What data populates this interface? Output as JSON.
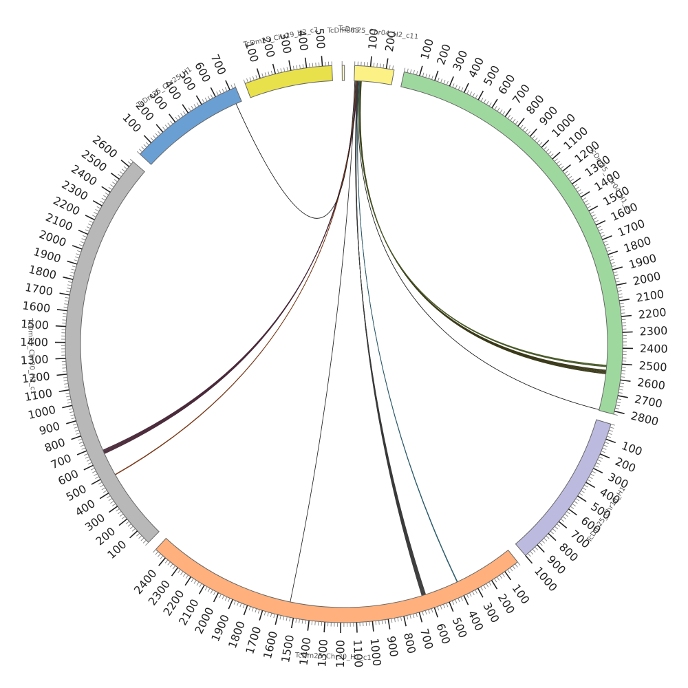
{
  "chart_data": {
    "type": "chord",
    "title": "",
    "segments": [
      {
        "name": "TcDm25_Chr04_H2_c11",
        "length": 250,
        "color": "#fcf184",
        "ticks": [
          100,
          200
        ]
      },
      {
        "name": "TcDm25_Chr04_H1_c1",
        "length": 2820,
        "color": "#9fd89f",
        "ticks": [
          100,
          200,
          300,
          400,
          500,
          600,
          700,
          800,
          900,
          1000,
          1100,
          1200,
          1300,
          1400,
          1500,
          1600,
          1700,
          1800,
          1900,
          2000,
          2100,
          2200,
          2300,
          2400,
          2500,
          2600,
          2700,
          2800
        ]
      },
      {
        "name": "TcDm25_Chr18_H1",
        "length": 1000,
        "color": "#bdbae0",
        "ticks": [
          100,
          200,
          300,
          400,
          500,
          600,
          700,
          800,
          900,
          1000
        ]
      },
      {
        "name": "TcDm25_Chr30_H1_c1",
        "length": 2480,
        "color": "#ffb07c",
        "ticks": [
          100,
          200,
          300,
          400,
          500,
          600,
          700,
          800,
          900,
          1000,
          1100,
          1200,
          1300,
          1400,
          1500,
          1600,
          1700,
          1800,
          1900,
          2000,
          2100,
          2200,
          2300,
          2400
        ]
      },
      {
        "name": "TcDm25_Chr30_H2_c1",
        "length": 2640,
        "color": "#b8b8b8",
        "ticks": [
          100,
          200,
          300,
          400,
          500,
          600,
          700,
          800,
          900,
          1000,
          1100,
          1200,
          1300,
          1400,
          1500,
          1600,
          1700,
          1800,
          1900,
          2000,
          2100,
          2200,
          2300,
          2400,
          2500,
          2600
        ]
      },
      {
        "name": "TcDm25_Chr25_H1",
        "length": 740,
        "color": "#6a9fd4",
        "ticks": [
          100,
          200,
          300,
          400,
          500,
          600,
          700
        ]
      },
      {
        "name": "TcDm25_Chr29_H2_c2",
        "length": 560,
        "color": "#e8e14c",
        "ticks": [
          100,
          200,
          300,
          400,
          500
        ]
      },
      {
        "name": "TcDm863",
        "length": 15,
        "color": "#f7f3c8",
        "ticks": []
      }
    ],
    "links": [
      {
        "source": "TcDm25_Chr04_H2_c11",
        "source_pos": 45,
        "target": "TcDm25_Chr04_H1_c1",
        "target_pos": 2560,
        "color": "#3a3a1a",
        "count": 8
      },
      {
        "source": "TcDm25_Chr04_H2_c11",
        "source_pos": 40,
        "target": "TcDm25_Chr04_H1_c1",
        "target_pos": 2520,
        "color": "#4a5a2a",
        "count": 4
      },
      {
        "source": "TcDm25_Chr04_H2_c11",
        "source_pos": 30,
        "target": "TcDm25_Chr04_H1_c1",
        "target_pos": 2815,
        "color": "#222222",
        "count": 1
      },
      {
        "source": "TcDm25_Chr04_H2_c11",
        "source_pos": 20,
        "target": "TcDm25_Chr30_H2_c1",
        "target_pos": 650,
        "color": "#4a2a3a",
        "count": 8
      },
      {
        "source": "TcDm25_Chr04_H2_c11",
        "source_pos": 15,
        "target": "TcDm25_Chr30_H2_c1",
        "target_pos": 480,
        "color": "#7a3a1a",
        "count": 2
      },
      {
        "source": "TcDm25_Chr04_H2_c11",
        "source_pos": 35,
        "target": "TcDm25_Chr30_H1_c1",
        "target_pos": 400,
        "color": "#2a5a6a",
        "count": 2
      },
      {
        "source": "TcDm25_Chr04_H2_c11",
        "source_pos": 25,
        "target": "TcDm25_Chr30_H1_c1",
        "target_pos": 640,
        "color": "#3a3a3a",
        "count": 8
      },
      {
        "source": "TcDm25_Chr04_H2_c11",
        "source_pos": 10,
        "target": "TcDm25_Chr30_H1_c1",
        "target_pos": 1540,
        "color": "#2a2a2a",
        "count": 1
      },
      {
        "source": "TcDm25_Chr04_H2_c11",
        "source_pos": 5,
        "target": "TcDm25_Chr25_H1",
        "target_pos": 700,
        "color": "#1a1a1a",
        "count": 1
      }
    ]
  }
}
